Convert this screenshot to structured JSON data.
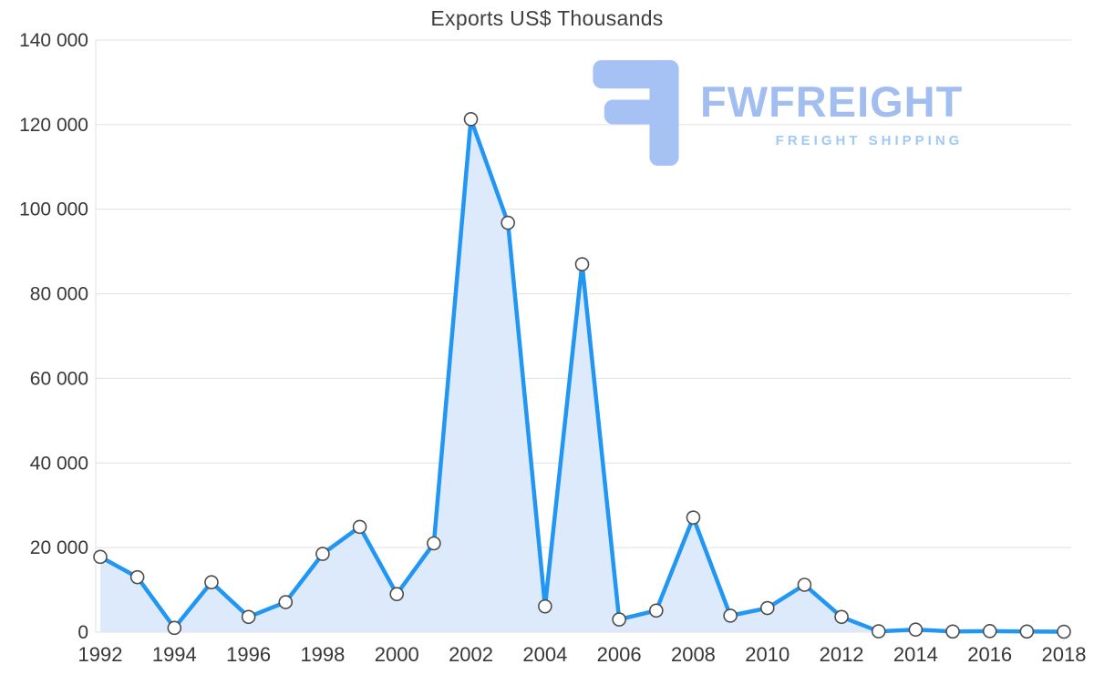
{
  "title": "Exports US$ Thousands",
  "watermark": {
    "brand": "FWFREIGHT",
    "tagline": "FREIGHT SHIPPING",
    "icon": "fwfreight-logo-icon"
  },
  "chart_data": {
    "type": "area",
    "title": "Exports US$ Thousands",
    "xlabel": "",
    "ylabel": "",
    "x": [
      1992,
      1993,
      1994,
      1995,
      1996,
      1997,
      1998,
      1999,
      2000,
      2001,
      2002,
      2003,
      2004,
      2005,
      2006,
      2007,
      2008,
      2009,
      2010,
      2011,
      2012,
      2013,
      2014,
      2015,
      2016,
      2017,
      2018
    ],
    "values": [
      17800,
      13000,
      1000,
      11800,
      3600,
      7100,
      18500,
      24900,
      9000,
      21000,
      121300,
      96800,
      6100,
      87000,
      3000,
      5100,
      27100,
      3900,
      5700,
      11200,
      3600,
      200,
      600,
      150,
      250,
      150,
      100
    ],
    "ylim": [
      0,
      140000
    ],
    "ytick_step": 20000,
    "x_label_every": 2,
    "grid": "horizontal",
    "legend": "none",
    "colors": {
      "line": "#2196f3",
      "area": "#ddeafb",
      "marker_fill": "#ffffff",
      "marker_stroke": "#4d4d4d",
      "grid": "#e0e0e0",
      "axis_text": "#373737",
      "title_text": "#3f3f3f",
      "watermark_brand": "#a2bef1",
      "watermark_tagline": "#9fcaf5"
    }
  }
}
